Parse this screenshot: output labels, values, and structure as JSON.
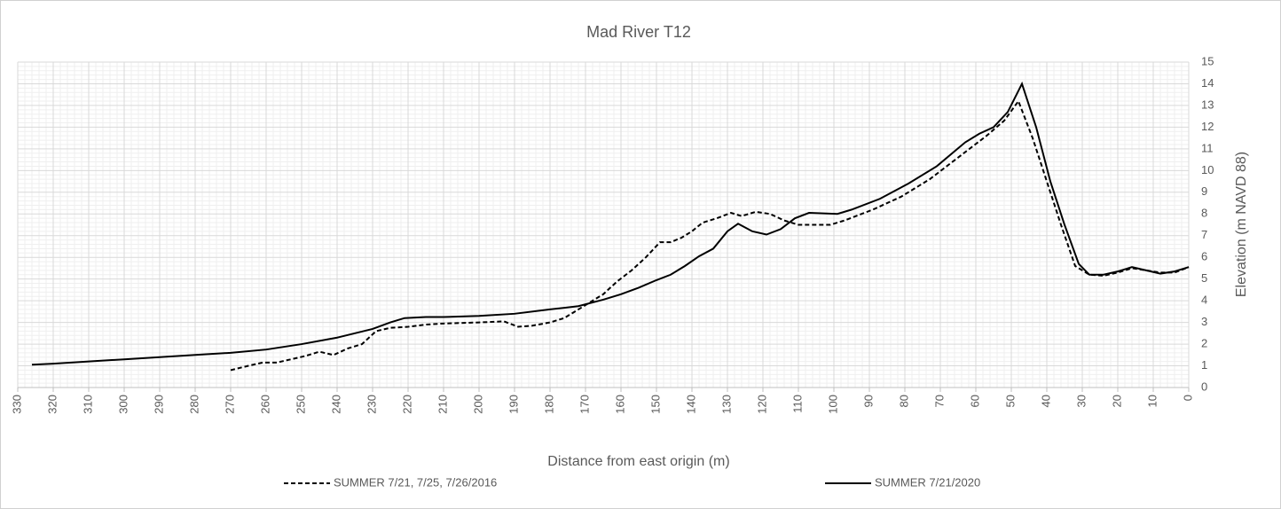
{
  "chart_data": {
    "type": "line",
    "title": "Mad River T12",
    "xlabel": "Distance from east origin (m)",
    "ylabel": "Elevation (m NAVD 88)",
    "xlim": [
      330,
      0
    ],
    "ylim": [
      0,
      15
    ],
    "xticks": [
      330,
      320,
      310,
      300,
      290,
      280,
      270,
      260,
      250,
      240,
      230,
      220,
      210,
      200,
      190,
      180,
      170,
      160,
      150,
      140,
      130,
      120,
      110,
      100,
      90,
      80,
      70,
      60,
      50,
      40,
      30,
      20,
      10,
      0
    ],
    "yticks": [
      0,
      1,
      2,
      3,
      4,
      5,
      6,
      7,
      8,
      9,
      10,
      11,
      12,
      13,
      14,
      15
    ],
    "grid": true,
    "minor_grid": true,
    "y_axis_side": "right",
    "legend": "bottom",
    "series": [
      {
        "name": "SUMMER 7/21, 7/25, 7/26/2016",
        "color": "#000000",
        "dash": true,
        "x": [
          270,
          265,
          261,
          257,
          253,
          249,
          245,
          241,
          237,
          233,
          229,
          225,
          220,
          215,
          210,
          200,
          193,
          189,
          185,
          180,
          176,
          172,
          168,
          165,
          161,
          157,
          153,
          149,
          146,
          143,
          140,
          137,
          133,
          129,
          126,
          122,
          118,
          114,
          110,
          101,
          97,
          89,
          81,
          73,
          65,
          57,
          52,
          48,
          44,
          40,
          36,
          32,
          28,
          24,
          20,
          16,
          12,
          8,
          4,
          0
        ],
        "values": [
          0.8,
          1.0,
          1.15,
          1.15,
          1.3,
          1.45,
          1.65,
          1.5,
          1.8,
          2.0,
          2.6,
          2.75,
          2.8,
          2.9,
          2.95,
          3.0,
          3.05,
          2.8,
          2.85,
          3.0,
          3.2,
          3.6,
          4.0,
          4.3,
          4.9,
          5.4,
          6.0,
          6.7,
          6.7,
          6.9,
          7.2,
          7.6,
          7.8,
          8.05,
          7.9,
          8.1,
          8.0,
          7.7,
          7.5,
          7.5,
          7.7,
          8.2,
          8.8,
          9.6,
          10.6,
          11.6,
          12.3,
          13.2,
          11.5,
          9.5,
          7.5,
          5.6,
          5.2,
          5.15,
          5.3,
          5.5,
          5.4,
          5.3,
          5.3,
          5.55
        ]
      },
      {
        "name": "SUMMER 7/21/2020",
        "color": "#000000",
        "dash": false,
        "x": [
          326,
          320,
          310,
          300,
          290,
          280,
          270,
          260,
          250,
          240,
          230,
          225,
          221,
          215,
          210,
          200,
          190,
          180,
          172,
          165,
          160,
          155,
          150,
          146,
          142,
          138,
          134,
          130,
          127,
          123,
          119,
          115,
          111,
          107,
          99,
          95,
          87,
          79,
          71,
          63,
          59,
          55,
          51,
          47,
          43,
          39,
          35,
          31,
          28,
          24,
          20,
          16,
          12,
          8,
          4,
          0
        ],
        "values": [
          1.05,
          1.1,
          1.2,
          1.3,
          1.4,
          1.5,
          1.6,
          1.75,
          2.0,
          2.3,
          2.7,
          3.0,
          3.2,
          3.25,
          3.25,
          3.3,
          3.4,
          3.6,
          3.75,
          4.05,
          4.3,
          4.6,
          4.95,
          5.2,
          5.6,
          6.05,
          6.4,
          7.2,
          7.55,
          7.2,
          7.05,
          7.3,
          7.8,
          8.05,
          8.0,
          8.2,
          8.7,
          9.4,
          10.2,
          11.3,
          11.7,
          12.0,
          12.7,
          14.0,
          12.0,
          9.5,
          7.5,
          5.7,
          5.2,
          5.2,
          5.35,
          5.55,
          5.4,
          5.25,
          5.35,
          5.55
        ]
      }
    ]
  }
}
